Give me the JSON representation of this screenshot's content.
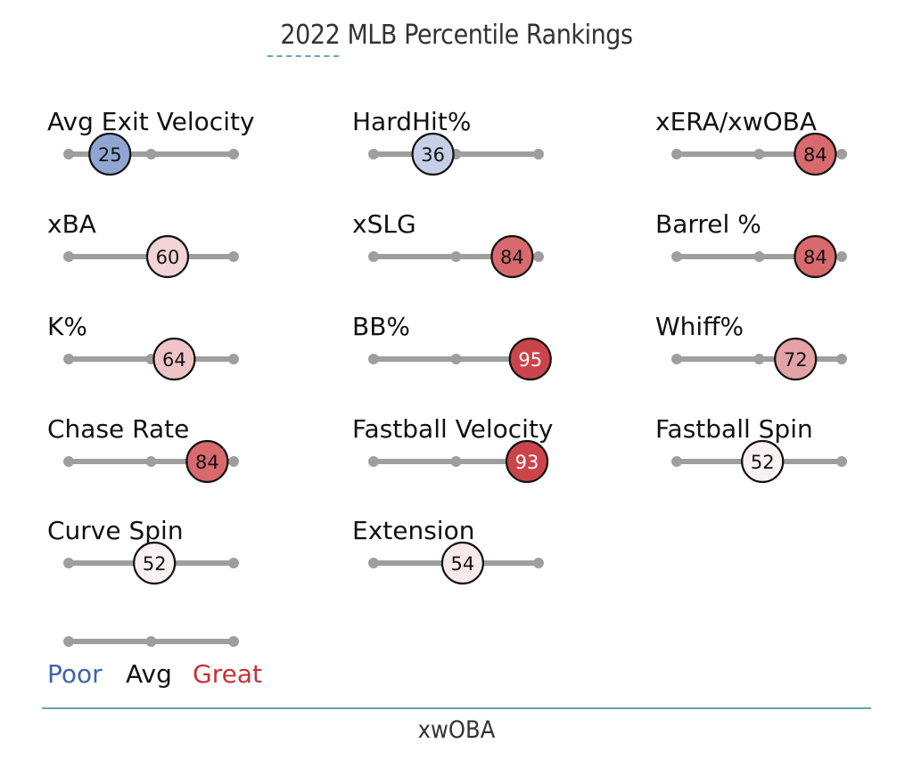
{
  "chart_data": {
    "type": "percentile-sliders",
    "title": "2022 MLB Percentile Rankings",
    "footer_tab": "xwOBA",
    "scale": {
      "min": 0,
      "mid": 50,
      "max": 100
    },
    "legend": {
      "poor": "Poor",
      "avg": "Avg",
      "great": "Great"
    },
    "colors": {
      "poor": "#3c64ad",
      "avg_text": "#111111",
      "great": "#c83038",
      "track": "#9e9e9e",
      "underline": "#6aa3be",
      "footer_rule": "#6b9fb3"
    },
    "metrics": [
      {
        "label": "Avg Exit Velocity",
        "percentile": 25,
        "fill": "#90a6d2",
        "text_color": "#111111"
      },
      {
        "label": "HardHit%",
        "percentile": 36,
        "fill": "#c5d0e6",
        "text_color": "#111111"
      },
      {
        "label": "xERA/xwOBA",
        "percentile": 84,
        "fill": "#d8696d",
        "text_color": "#111111"
      },
      {
        "label": "xBA",
        "percentile": 60,
        "fill": "#f2d3d6",
        "text_color": "#111111"
      },
      {
        "label": "xSLG",
        "percentile": 84,
        "fill": "#d8696d",
        "text_color": "#111111"
      },
      {
        "label": "Barrel %",
        "percentile": 84,
        "fill": "#d8696d",
        "text_color": "#111111"
      },
      {
        "label": "K%",
        "percentile": 64,
        "fill": "#efc4c8",
        "text_color": "#111111"
      },
      {
        "label": "BB%",
        "percentile": 95,
        "fill": "#cc444b",
        "text_color": "#ffffff"
      },
      {
        "label": "Whiff%",
        "percentile": 72,
        "fill": "#e3a2a6",
        "text_color": "#111111"
      },
      {
        "label": "Chase Rate",
        "percentile": 84,
        "fill": "#d8696d",
        "text_color": "#111111"
      },
      {
        "label": "Fastball Velocity",
        "percentile": 93,
        "fill": "#cc444b",
        "text_color": "#ffffff"
      },
      {
        "label": "Fastball Spin",
        "percentile": 52,
        "fill": "#faf1f2",
        "text_color": "#111111"
      },
      {
        "label": "Curve Spin",
        "percentile": 52,
        "fill": "#faf1f2",
        "text_color": "#111111"
      },
      {
        "label": "Extension",
        "percentile": 54,
        "fill": "#f8e9ea",
        "text_color": "#111111"
      }
    ]
  }
}
